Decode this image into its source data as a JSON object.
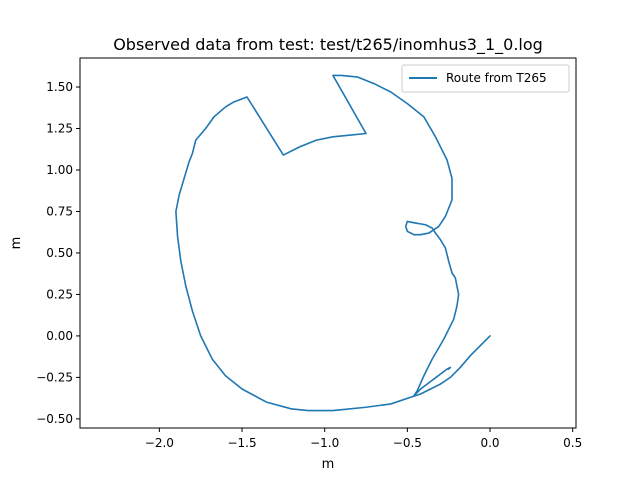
{
  "chart_data": {
    "type": "line",
    "title": "Observed data from test: test/t265/inomhus3_1_0.log",
    "xlabel": "m",
    "ylabel": "m",
    "xlim": [
      -2.48,
      0.52
    ],
    "ylim": [
      -0.555,
      1.675
    ],
    "xticks": [
      -2.0,
      -1.5,
      -1.0,
      -0.5,
      0.0,
      0.5
    ],
    "xtick_labels": [
      "−2.0",
      "−1.5",
      "−1.0",
      "−0.5",
      "0.0",
      "0.5"
    ],
    "yticks": [
      -0.5,
      -0.25,
      0.0,
      0.25,
      0.5,
      0.75,
      1.0,
      1.25,
      1.5
    ],
    "ytick_labels": [
      "−0.50",
      "−0.25",
      "0.00",
      "0.25",
      "0.50",
      "0.75",
      "1.00",
      "1.25",
      "1.50"
    ],
    "grid": false,
    "legend": "top-right",
    "series": [
      {
        "name": "Route from T265",
        "color": "#1f77b4",
        "points": [
          [
            0.0,
            0.0
          ],
          [
            -0.05,
            -0.05
          ],
          [
            -0.12,
            -0.12
          ],
          [
            -0.18,
            -0.19
          ],
          [
            -0.24,
            -0.25
          ],
          [
            -0.3,
            -0.29
          ],
          [
            -0.36,
            -0.32
          ],
          [
            -0.42,
            -0.35
          ],
          [
            -0.48,
            -0.37
          ],
          [
            -0.6,
            -0.41
          ],
          [
            -0.75,
            -0.43
          ],
          [
            -0.95,
            -0.45
          ],
          [
            -1.1,
            -0.45
          ],
          [
            -1.2,
            -0.44
          ],
          [
            -1.35,
            -0.4
          ],
          [
            -1.5,
            -0.32
          ],
          [
            -1.6,
            -0.24
          ],
          [
            -1.68,
            -0.14
          ],
          [
            -1.75,
            0.0
          ],
          [
            -1.8,
            0.15
          ],
          [
            -1.84,
            0.3
          ],
          [
            -1.87,
            0.45
          ],
          [
            -1.89,
            0.6
          ],
          [
            -1.9,
            0.75
          ],
          [
            -1.88,
            0.85
          ],
          [
            -1.85,
            0.95
          ],
          [
            -1.82,
            1.05
          ],
          [
            -1.8,
            1.1
          ],
          [
            -1.78,
            1.18
          ],
          [
            -1.72,
            1.25
          ],
          [
            -1.67,
            1.32
          ],
          [
            -1.6,
            1.38
          ],
          [
            -1.55,
            1.41
          ],
          [
            -1.47,
            1.44
          ],
          [
            -1.25,
            1.09
          ],
          [
            -1.15,
            1.14
          ],
          [
            -1.05,
            1.18
          ],
          [
            -0.95,
            1.2
          ],
          [
            -0.85,
            1.21
          ],
          [
            -0.75,
            1.22
          ],
          [
            -0.95,
            1.57
          ],
          [
            -0.9,
            1.57
          ],
          [
            -0.8,
            1.56
          ],
          [
            -0.7,
            1.52
          ],
          [
            -0.6,
            1.47
          ],
          [
            -0.5,
            1.4
          ],
          [
            -0.4,
            1.32
          ],
          [
            -0.33,
            1.2
          ],
          [
            -0.26,
            1.06
          ],
          [
            -0.23,
            0.95
          ],
          [
            -0.23,
            0.82
          ],
          [
            -0.27,
            0.72
          ],
          [
            -0.31,
            0.66
          ],
          [
            -0.37,
            0.62
          ],
          [
            -0.42,
            0.61
          ],
          [
            -0.46,
            0.61
          ],
          [
            -0.5,
            0.63
          ],
          [
            -0.51,
            0.66
          ],
          [
            -0.5,
            0.69
          ],
          [
            -0.45,
            0.68
          ],
          [
            -0.39,
            0.67
          ],
          [
            -0.35,
            0.65
          ],
          [
            -0.33,
            0.62
          ],
          [
            -0.3,
            0.58
          ],
          [
            -0.27,
            0.53
          ],
          [
            -0.25,
            0.45
          ],
          [
            -0.23,
            0.38
          ],
          [
            -0.21,
            0.35
          ],
          [
            -0.2,
            0.3
          ],
          [
            -0.19,
            0.25
          ],
          [
            -0.2,
            0.18
          ],
          [
            -0.22,
            0.1
          ],
          [
            -0.28,
            -0.02
          ],
          [
            -0.35,
            -0.14
          ],
          [
            -0.4,
            -0.24
          ],
          [
            -0.44,
            -0.33
          ],
          [
            -0.46,
            -0.36
          ],
          [
            -0.42,
            -0.32
          ],
          [
            -0.34,
            -0.26
          ],
          [
            -0.26,
            -0.2
          ],
          [
            -0.24,
            -0.19
          ],
          [
            -0.25,
            -0.2
          ]
        ]
      }
    ]
  }
}
